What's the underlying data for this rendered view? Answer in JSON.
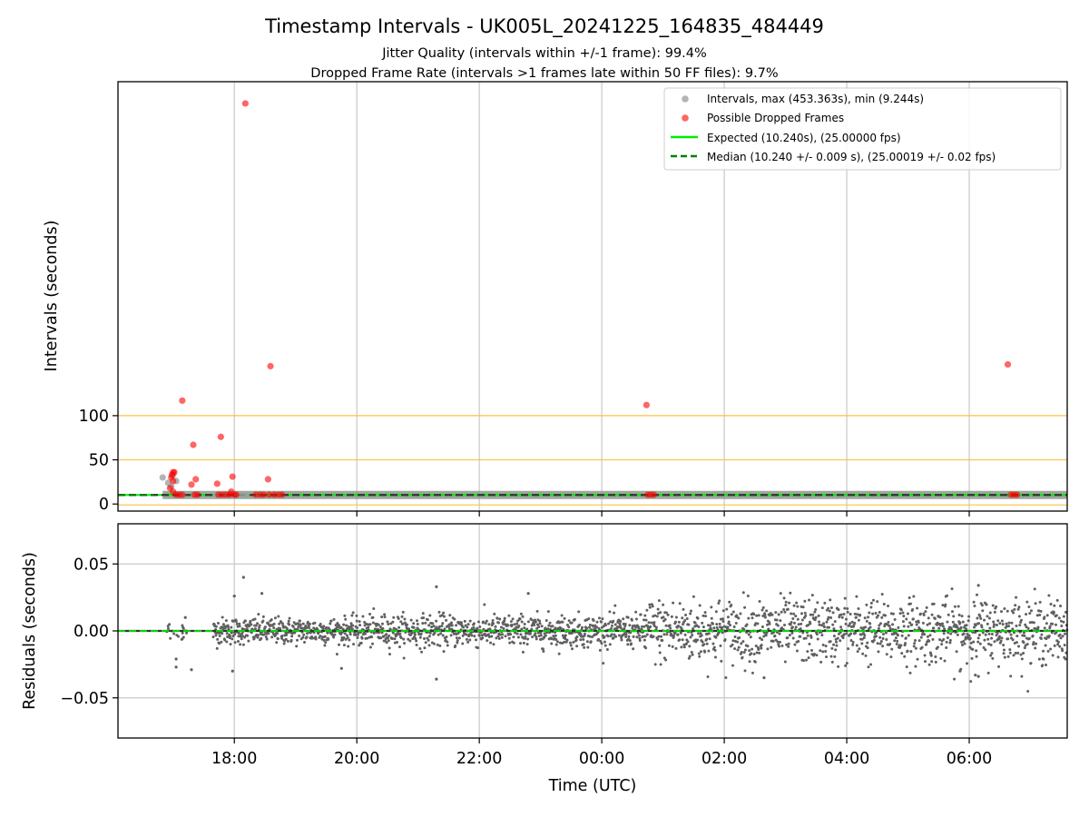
{
  "title": "Timestamp Intervals - UK005L_20241225_164835_484449",
  "subtitle_lines": [
    "Jitter Quality (intervals within +/-1 frame): 99.4%",
    "Dropped Frame Rate (intervals >1 frames late within 50 FF files): 9.7%"
  ],
  "colors": {
    "intervals": "#a0a0a0",
    "dropped": "#ff0000",
    "expected": "#00ee00",
    "median": "#008000",
    "threshold": "#ffc040",
    "residuals": "#606060",
    "grid": "#c8c8c8"
  },
  "chart_data": [
    {
      "type": "scatter",
      "ylabel": "Intervals (seconds)",
      "xlabel": "",
      "xlim": [
        16.1,
        31.6
      ],
      "ylim": [
        -8,
        478
      ],
      "yticks": [
        0,
        50,
        100
      ],
      "ytick_labels": [
        "0",
        "50",
        "100"
      ],
      "grid": "vertical",
      "threshold_lines": [
        -1,
        50,
        100
      ],
      "legend_position": "top-right",
      "legend": [
        "Intervals, max (453.363s), min (9.244s)",
        "Possible Dropped Frames",
        "Expected (10.240s), (25.00000 fps)",
        "Median (10.240 +/- 0.009 s), (25.00019 +/- 0.02 fps)"
      ],
      "expected_value": 10.24,
      "median_value": 10.24,
      "series": [
        {
          "name": "Intervals, max (453.363s), min (9.244s)",
          "points": [
            [
              16.83,
              30
            ],
            [
              16.92,
              24
            ],
            [
              16.97,
              20
            ],
            [
              17.0,
              33
            ],
            [
              17.05,
              26
            ],
            [
              17.15,
              10.3
            ],
            [
              17.35,
              10.3
            ],
            [
              17.7,
              10.3
            ],
            [
              18.1,
              10.3
            ],
            [
              18.2,
              10.3
            ]
          ]
        },
        {
          "name": "Possible Dropped Frames",
          "points": [
            [
              16.97,
              30
            ],
            [
              16.98,
              33
            ],
            [
              17.0,
              36
            ],
            [
              17.02,
              36
            ],
            [
              17.0,
              26
            ],
            [
              16.95,
              18
            ],
            [
              17.0,
              14
            ],
            [
              17.05,
              10.5
            ],
            [
              17.1,
              10.5
            ],
            [
              17.15,
              10.5
            ],
            [
              17.15,
              117
            ],
            [
              17.3,
              22
            ],
            [
              17.33,
              67
            ],
            [
              17.37,
              28
            ],
            [
              17.35,
              10.5
            ],
            [
              17.4,
              10.5
            ],
            [
              17.72,
              23
            ],
            [
              17.78,
              76
            ],
            [
              17.74,
              10.5
            ],
            [
              17.8,
              10.5
            ],
            [
              17.86,
              10.5
            ],
            [
              17.95,
              14
            ],
            [
              17.97,
              31
            ],
            [
              17.92,
              10.5
            ],
            [
              18.0,
              10.5
            ],
            [
              18.03,
              10.5
            ],
            [
              18.18,
              453.4
            ],
            [
              18.35,
              10.5
            ],
            [
              18.42,
              10.5
            ],
            [
              18.48,
              10.5
            ],
            [
              18.55,
              28
            ],
            [
              18.59,
              156
            ],
            [
              18.57,
              10.5
            ],
            [
              18.65,
              10.5
            ],
            [
              18.72,
              10.5
            ],
            [
              18.78,
              10.5
            ],
            [
              24.73,
              112
            ],
            [
              24.75,
              10.5
            ],
            [
              24.8,
              10.5
            ],
            [
              24.85,
              10.5
            ],
            [
              30.63,
              158
            ],
            [
              30.68,
              10.5
            ],
            [
              30.73,
              10.5
            ],
            [
              30.78,
              10.5
            ]
          ]
        },
        {
          "name": "Expected (10.240s), (25.00000 fps)",
          "x": [
            16.1,
            31.6
          ],
          "y": [
            10.24,
            10.24
          ]
        },
        {
          "name": "Median (10.240 +/- 0.009 s), (25.00019 +/- 0.02 fps)",
          "x": [
            16.1,
            31.6
          ],
          "y": [
            10.24,
            10.24
          ]
        }
      ],
      "baseline_band": {
        "x": [
          16.83,
          31.6
        ],
        "y": 10.24
      }
    },
    {
      "type": "scatter",
      "xlabel": "Time (UTC)",
      "ylabel": "Residuals (seconds)",
      "xlim": [
        16.1,
        31.6
      ],
      "ylim": [
        -0.08,
        0.08
      ],
      "xticks": [
        18,
        20,
        22,
        24,
        26,
        28,
        30
      ],
      "xtick_labels": [
        "18:00",
        "20:00",
        "22:00",
        "00:00",
        "02:00",
        "04:00",
        "06:00"
      ],
      "yticks": [
        -0.05,
        0.0,
        0.05
      ],
      "ytick_labels": [
        "−0.05",
        "0.00",
        "0.05"
      ],
      "grid": true,
      "zero_line": 0.0,
      "residual_spread": [
        {
          "x": [
            16.83,
            17.7
          ],
          "sd": 0.004
        },
        {
          "x": [
            17.7,
            20.0
          ],
          "sd": 0.005
        },
        {
          "x": [
            20.0,
            24.7
          ],
          "sd": 0.006
        },
        {
          "x": [
            24.7,
            31.6
          ],
          "sd": 0.012
        }
      ],
      "residual_outliers": [
        [
          17.05,
          -0.021
        ],
        [
          17.05,
          -0.027
        ],
        [
          17.3,
          -0.029
        ],
        [
          17.2,
          0.01
        ],
        [
          17.97,
          -0.03
        ],
        [
          18.0,
          0.026
        ],
        [
          18.15,
          0.04
        ],
        [
          18.45,
          0.028
        ],
        [
          19.75,
          -0.028
        ],
        [
          21.3,
          0.033
        ],
        [
          21.3,
          -0.036
        ],
        [
          22.8,
          0.028
        ],
        [
          26.65,
          -0.035
        ],
        [
          29.85,
          -0.03
        ],
        [
          30.1,
          -0.033
        ],
        [
          30.15,
          -0.034
        ],
        [
          30.15,
          0.034
        ]
      ]
    }
  ]
}
